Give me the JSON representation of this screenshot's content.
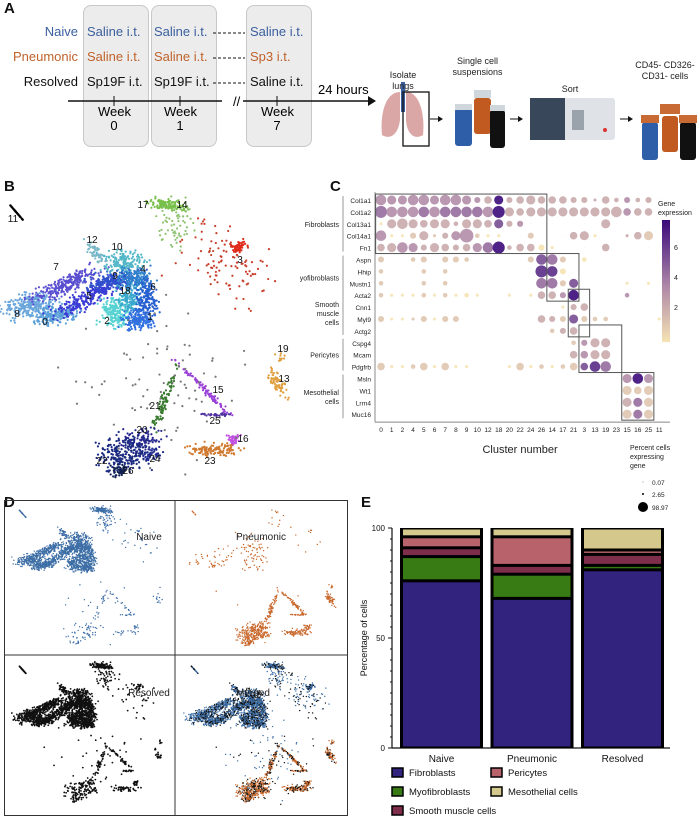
{
  "panels": {
    "a": "A",
    "b": "B",
    "c": "C",
    "d": "D",
    "e": "E"
  },
  "panel_a": {
    "groups": [
      {
        "name": "Naive",
        "color": "#3a5f9e",
        "treat": [
          "Saline i.t.",
          "Saline i.t.",
          "Saline i.t."
        ]
      },
      {
        "name": "Pneumonic",
        "color": "#c0622b",
        "treat": [
          "Saline i.t.",
          "Saline i.t.",
          "Sp3 i.t."
        ]
      },
      {
        "name": "Resolved",
        "color": "#111111",
        "treat": [
          "Sp19F i.t.",
          "Sp19F i.t.",
          "Saline i.t."
        ]
      }
    ],
    "weeks": [
      {
        "label": "Week",
        "num": "0"
      },
      {
        "label": "Week",
        "num": "1"
      },
      {
        "label": "Week",
        "num": "7"
      }
    ],
    "break_mark": "//",
    "delay": "24 hours",
    "steps": {
      "isolate": "Isolate lungs",
      "suspension": "Single cell suspensions",
      "sort": "Sort",
      "cells": "CD45- CD326- CD31- cells"
    }
  },
  "panel_b": {
    "cluster_labels": [
      "11",
      "17",
      "14",
      "3",
      "12",
      "10",
      "7",
      "4",
      "9",
      "6",
      "18",
      "5",
      "8",
      "0",
      "2",
      "1",
      "19",
      "13",
      "15",
      "21",
      "25",
      "20",
      "16",
      "22",
      "24",
      "23",
      "26"
    ]
  },
  "panel_c": {
    "groups": [
      "Fibroblasts",
      "Myofibroblasts",
      "Smooth muscle cells",
      "Pericytes",
      "Mesothelial cells"
    ],
    "genes": [
      "Col1a1",
      "Col1a2",
      "Col13a1",
      "Col14a1",
      "Fn1",
      "Aspn",
      "Hhip",
      "Mustn1",
      "Acta2",
      "Cnn1",
      "Myl9",
      "Actg2",
      "Cspg4",
      "Mcam",
      "Pdgfrb",
      "Msln",
      "Wt1",
      "Lrrn4",
      "Muc16"
    ],
    "clusters": [
      "0",
      "1",
      "2",
      "4",
      "5",
      "6",
      "7",
      "8",
      "9",
      "10",
      "12",
      "18",
      "20",
      "22",
      "24",
      "26",
      "14",
      "17",
      "21",
      "3",
      "13",
      "19",
      "23",
      "15",
      "16",
      "25",
      "11"
    ],
    "pct_level": [
      "655665665345345444331423230",
      "766666666667545555555564440",
      "156545525545330000000500000",
      "611351358211003000451001450",
      "456535434567244310000400000",
      "300230332000003663020000000",
      "200020200000000763000000000",
      "200020200000000663500001010",
      "211121212100101443600002000",
      "000000000000000001340000000",
      "311131330000000433532200001",
      "000000000000000023400000000",
      "000000000000000000235500000",
      "000000000000000000445500000",
      "411241411000141212446600000",
      "000000000000000000000005650",
      "000000000000000000000005450",
      "000000000000000000000005550",
      "000000000000000000000005550"
    ],
    "expr_level": [
      "333333333327222222222223222",
      "433343444437222222222223220",
      "022222222225232000000200000",
      "300121233100001001220002210",
      "223322222347222000000200000",
      "100110111000001541000000000",
      "100010100000000660000000000",
      "100010100000000441500000000",
      "100010100000000223700003000",
      "000000000000000000220000000",
      "100110110000000221511100000",
      "000000000000000012200000000",
      "000000000000000000132200000",
      "000000000000000000232200000",
      "100110100000010101156400000",
      "000000000000000000000003730",
      "000000000000000000000001110",
      "000000000000000000000002410",
      "000000000000000000000001410"
    ],
    "xlabel": "Cluster number",
    "colorbar": {
      "title": "Gene expression",
      "ticks": [
        "6",
        "4",
        "2"
      ],
      "low": "#f5e3b3",
      "high": "#3b0a7a"
    },
    "size_legend": {
      "title": "Percent cells expressing gene",
      "values": [
        "0.07",
        "2.65",
        "98.97"
      ]
    }
  },
  "panel_d": {
    "labels": [
      "Naive",
      "Pneumonic",
      "Resolved",
      "Merged"
    ],
    "colors": {
      "naive": "#3d6ea6",
      "pneumonic": "#c8672a",
      "resolved": "#111111"
    }
  },
  "chart_data": {
    "type": "bar",
    "stacked": true,
    "categories": [
      "Naive",
      "Pneumonic",
      "Resolved"
    ],
    "ylabel": "Percentage of cells",
    "xlabel": "",
    "ylim": [
      0,
      100
    ],
    "yticks": [
      "0",
      "50",
      "100"
    ],
    "series": [
      {
        "name": "Fibroblasts",
        "color": "#31237e",
        "values": [
          76,
          68,
          81
        ]
      },
      {
        "name": "Myofibroblasts",
        "color": "#387a13",
        "values": [
          11,
          11,
          2
        ]
      },
      {
        "name": "Smooth muscle cells",
        "color": "#7e2d4b",
        "values": [
          4,
          4,
          5
        ]
      },
      {
        "name": "Pericytes",
        "color": "#b8636c",
        "values": [
          5,
          13,
          2
        ]
      },
      {
        "name": "Mesothelial cells",
        "color": "#d5c88d",
        "values": [
          4,
          4,
          10
        ]
      }
    ],
    "legend": "bottom"
  }
}
